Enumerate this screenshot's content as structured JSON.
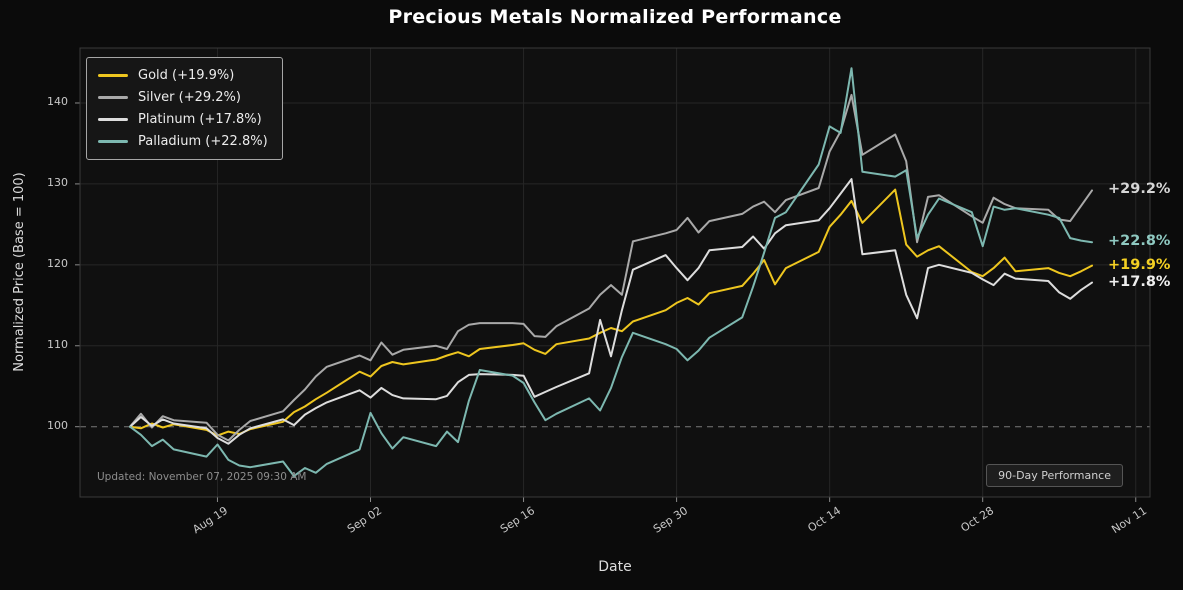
{
  "title": "Precious Metals Normalized Performance",
  "x_axis_label": "Date",
  "y_axis_label": "Normalized Price (Base = 100)",
  "updated_text": "Updated: November 07, 2025 09:30 AM",
  "badge_text": "90-Day Performance",
  "colors": {
    "background": "#0b0b0b",
    "plot_background": "#101010",
    "grid": "#262626",
    "baseline_dash": "#9b9b9b",
    "tick_text": "#c8c8c8"
  },
  "chart_data": {
    "type": "line",
    "title": "Precious Metals Normalized Performance",
    "xlabel": "Date",
    "ylabel": "Normalized Price (Base = 100)",
    "x_tick_labels": [
      "Aug 19",
      "Sep 02",
      "Sep 16",
      "Sep 30",
      "Oct 14",
      "Oct 28",
      "Nov 11"
    ],
    "y_ticks": [
      100,
      110,
      120,
      130,
      140
    ],
    "ylim": [
      91.5,
      146.5
    ],
    "baseline": 100,
    "grid": true,
    "legend_position": "upper-left",
    "points_per_series": 65,
    "x_range_note": "daily trading data Aug 11 - Nov 07, 2025",
    "series": [
      {
        "name": "Gold",
        "legend_label": "Gold (+19.9%)",
        "end_label": "+19.9%",
        "color": "#eec61f",
        "label_color": "#f5d123",
        "final_change_pct": 19.9,
        "values": [
          100.0,
          99.8,
          100.4,
          99.9,
          100.3,
          99.6,
          98.9,
          99.4,
          99.1,
          99.7,
          100.6,
          101.8,
          102.5,
          103.4,
          104.2,
          106.8,
          106.2,
          107.5,
          108.0,
          107.7,
          108.3,
          108.8,
          109.2,
          108.7,
          109.6,
          110.1,
          110.3,
          109.5,
          109.0,
          110.2,
          110.9,
          111.6,
          112.2,
          111.8,
          113.0,
          114.4,
          115.3,
          115.9,
          115.1,
          116.5,
          117.4,
          118.9,
          120.6,
          117.6,
          119.6,
          121.6,
          124.7,
          126.2,
          127.9,
          125.2,
          129.3,
          122.5,
          121.0,
          121.8,
          122.3,
          119.1,
          118.6,
          119.6,
          120.9,
          119.2,
          119.6,
          119.0,
          118.6,
          119.2,
          119.9
        ]
      },
      {
        "name": "Silver",
        "legend_label": "Silver (+29.2%)",
        "end_label": "+29.2%",
        "color": "#a9a9a9",
        "label_color": "#d6d6d6",
        "final_change_pct": 29.2,
        "values": [
          100.0,
          101.6,
          99.9,
          101.3,
          100.8,
          100.5,
          99.0,
          98.3,
          99.6,
          100.7,
          101.9,
          103.3,
          104.6,
          106.2,
          107.4,
          108.8,
          108.2,
          110.4,
          108.9,
          109.5,
          110.0,
          109.6,
          111.8,
          112.6,
          112.8,
          112.8,
          112.7,
          111.2,
          111.1,
          112.4,
          114.6,
          116.3,
          117.5,
          116.3,
          122.9,
          123.9,
          124.3,
          125.8,
          124.0,
          125.4,
          126.3,
          127.2,
          127.8,
          126.5,
          128.0,
          129.5,
          134.0,
          136.5,
          141.0,
          133.6,
          136.1,
          132.8,
          122.8,
          128.4,
          128.6,
          126.0,
          125.2,
          128.3,
          127.5,
          127.0,
          126.8,
          125.6,
          125.4,
          127.3,
          129.2
        ]
      },
      {
        "name": "Platinum",
        "legend_label": "Platinum (+17.8%)",
        "end_label": "+17.8%",
        "color": "#dddddd",
        "label_color": "#efefef",
        "final_change_pct": 17.8,
        "values": [
          100.0,
          101.2,
          100.1,
          100.9,
          100.4,
          99.8,
          98.6,
          97.9,
          99.0,
          99.8,
          100.9,
          100.2,
          101.5,
          102.3,
          103.0,
          104.5,
          103.6,
          104.8,
          103.9,
          103.5,
          103.4,
          103.8,
          105.5,
          106.4,
          106.5,
          106.4,
          106.3,
          103.7,
          104.3,
          104.9,
          106.6,
          113.2,
          108.7,
          114.4,
          119.4,
          121.2,
          119.6,
          118.1,
          119.6,
          121.8,
          122.2,
          123.5,
          122.0,
          123.9,
          124.9,
          125.5,
          127.0,
          128.8,
          130.6,
          121.3,
          121.8,
          116.3,
          113.4,
          119.6,
          120.0,
          119.0,
          118.2,
          117.5,
          118.9,
          118.3,
          118.0,
          116.6,
          115.8,
          116.9,
          117.8
        ]
      },
      {
        "name": "Palladium",
        "legend_label": "Palladium (+22.8%)",
        "end_label": "+22.8%",
        "color": "#7db8b0",
        "label_color": "#8fc9c1",
        "final_change_pct": 22.8,
        "values": [
          100.0,
          99.0,
          97.6,
          98.4,
          97.2,
          96.3,
          97.8,
          95.9,
          95.2,
          95.0,
          95.7,
          93.9,
          94.9,
          94.3,
          95.4,
          97.2,
          101.7,
          99.2,
          97.3,
          98.7,
          97.6,
          99.4,
          98.1,
          103.2,
          107.0,
          106.3,
          105.4,
          103.0,
          100.8,
          101.6,
          103.5,
          102.0,
          104.8,
          108.6,
          111.6,
          110.2,
          109.6,
          108.2,
          109.4,
          111.0,
          113.5,
          117.3,
          121.5,
          125.8,
          126.5,
          132.4,
          137.1,
          136.3,
          144.3,
          131.5,
          130.9,
          131.7,
          123.3,
          126.2,
          128.2,
          126.5,
          122.3,
          127.2,
          126.8,
          127.0,
          126.2,
          125.8,
          123.3,
          123.0,
          122.8
        ]
      }
    ]
  }
}
